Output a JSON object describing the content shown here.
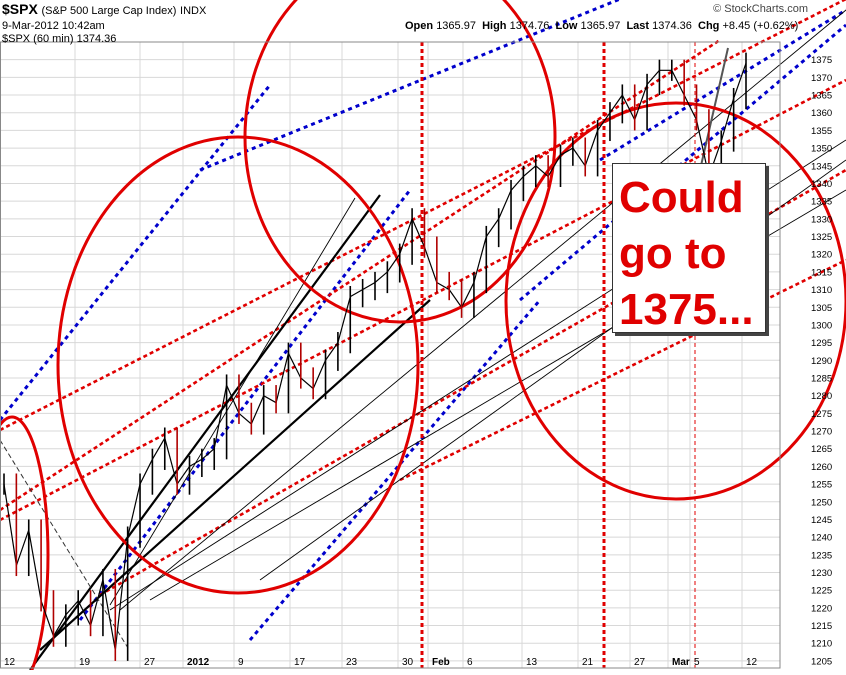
{
  "header": {
    "ticker": "$SPX",
    "description": "(S&P 500 Large Cap Index)",
    "exchange": "INDX",
    "date": "9-Mar-2012 10:42am",
    "series_label": "$SPX (60 min)",
    "series_value": "1374.36",
    "open_label": "Open",
    "open": "1365.97",
    "high_label": "High",
    "high": "1374.76",
    "low_label": "Low",
    "low": "1365.97",
    "last_label": "Last",
    "last": "1374.36",
    "chg_label": "Chg",
    "chg": "+8.45 (+0.62%)",
    "brand": "© StockCharts.com"
  },
  "annotation": {
    "text": "Could\ngo to\n1375..."
  },
  "colors": {
    "red": "#e00000",
    "blue": "#0000cc",
    "grid": "#d8d8d8",
    "up": "#000000",
    "down": "#b00000"
  },
  "chart_data": {
    "type": "line",
    "title": "$SPX (60 min)",
    "ylim": [
      1203,
      1380
    ],
    "y_ticks": [
      1205,
      1210,
      1215,
      1220,
      1225,
      1230,
      1235,
      1240,
      1245,
      1250,
      1255,
      1260,
      1265,
      1270,
      1275,
      1280,
      1285,
      1290,
      1295,
      1300,
      1305,
      1310,
      1315,
      1320,
      1325,
      1330,
      1335,
      1340,
      1345,
      1350,
      1355,
      1360,
      1365,
      1370,
      1375
    ],
    "x_tick_labels": [
      "12",
      "19",
      "27",
      "2012",
      "9",
      "17",
      "23",
      "30",
      "Feb",
      "6",
      "13",
      "21",
      "27",
      "Mar",
      "5",
      "12"
    ],
    "grid": true,
    "series": [
      {
        "name": "$SPX",
        "x": [
          0,
          1,
          2,
          3,
          4,
          5,
          6,
          7,
          8,
          9,
          10,
          11,
          12,
          13,
          14,
          15,
          16,
          17,
          18,
          19,
          20,
          21,
          22,
          23,
          24,
          25,
          26,
          27,
          28,
          29,
          30,
          31,
          32,
          33,
          34,
          35,
          36,
          37,
          38,
          39,
          40,
          41,
          42,
          43,
          44,
          45,
          46,
          47,
          48,
          49,
          50,
          51,
          52,
          53,
          54,
          55,
          56,
          57,
          58,
          59,
          60
        ],
        "values": [
          1255,
          1232,
          1242,
          1222,
          1212,
          1218,
          1222,
          1215,
          1228,
          1208,
          1240,
          1255,
          1262,
          1268,
          1255,
          1260,
          1262,
          1265,
          1283,
          1275,
          1272,
          1280,
          1278,
          1292,
          1285,
          1282,
          1290,
          1295,
          1308,
          1310,
          1312,
          1315,
          1320,
          1330,
          1322,
          1312,
          1310,
          1305,
          1312,
          1325,
          1330,
          1338,
          1342,
          1345,
          1342,
          1348,
          1350,
          1345,
          1355,
          1360,
          1365,
          1358,
          1368,
          1372,
          1372,
          1365,
          1358,
          1342,
          1352,
          1364,
          1374
        ]
      }
    ]
  }
}
